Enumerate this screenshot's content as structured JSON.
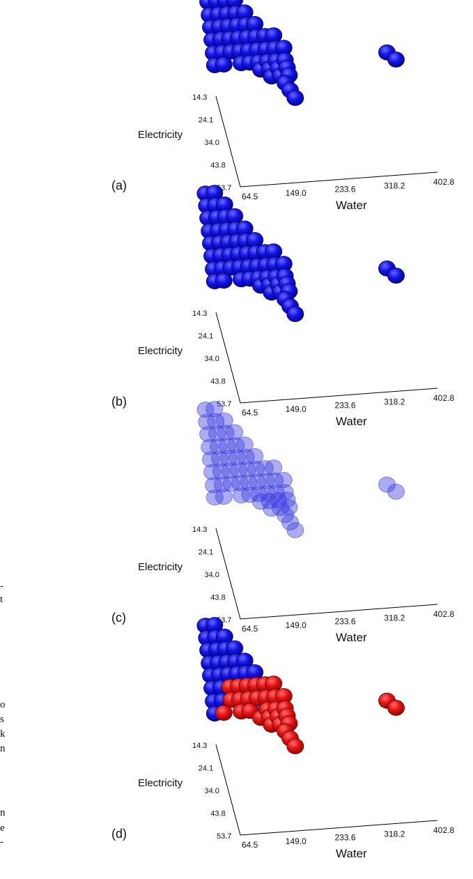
{
  "fragment_text": [
    "-",
    "t",
    "o",
    "s",
    "k",
    "n",
    "n",
    "e",
    "-"
  ],
  "colors": {
    "blue": "#1414e6",
    "blue_dark": "#00008c",
    "red": "#e61414",
    "red_dark": "#8c0000",
    "axis": "#000000"
  },
  "chart_data": [
    {
      "type": "scatter",
      "panel_label": "(a)",
      "xlabel": "Water",
      "ylabel": "Electricity",
      "x_ticks": [
        "64.5",
        "149.0",
        "233.6",
        "318.2",
        "402.8"
      ],
      "y_ticks": [
        "14.3",
        "24.1",
        "34.0",
        "43.8",
        "53.7"
      ],
      "xlim": [
        64.5,
        402.8
      ],
      "ylim": [
        14.3,
        53.7
      ],
      "marker_style": "solid",
      "series": [
        {
          "color": "blue",
          "points": [
            [
              64.5,
              14.3
            ],
            [
              64.5,
              17.5
            ],
            [
              64.5,
              20.7
            ],
            [
              64.5,
              24.1
            ],
            [
              64.5,
              27.3
            ],
            [
              64.5,
              30.6
            ],
            [
              64.5,
              34.0
            ],
            [
              64.5,
              37.2
            ],
            [
              80,
              14.3
            ],
            [
              80,
              17.5
            ],
            [
              80,
              20.7
            ],
            [
              80,
              24.1
            ],
            [
              80,
              27.3
            ],
            [
              80,
              30.6
            ],
            [
              80,
              34.0
            ],
            [
              80,
              37.2
            ],
            [
              95,
              17.5
            ],
            [
              95,
              20.7
            ],
            [
              95,
              24.1
            ],
            [
              95,
              27.3
            ],
            [
              95,
              30.6
            ],
            [
              95,
              34.0
            ],
            [
              110,
              20.7
            ],
            [
              110,
              24.1
            ],
            [
              110,
              27.3
            ],
            [
              110,
              30.6
            ],
            [
              110,
              34.0
            ],
            [
              110,
              37.2
            ],
            [
              125,
              24.1
            ],
            [
              125,
              27.3
            ],
            [
              125,
              30.6
            ],
            [
              125,
              34.0
            ],
            [
              125,
              37.2
            ],
            [
              140,
              27.3
            ],
            [
              140,
              30.6
            ],
            [
              140,
              34.0
            ],
            [
              140,
              37.2
            ],
            [
              140,
              40.5
            ],
            [
              155,
              30.6
            ],
            [
              155,
              34.0
            ],
            [
              155,
              37.2
            ],
            [
              155,
              40.5
            ],
            [
              155,
              43.8
            ],
            [
              170,
              30.6
            ],
            [
              170,
              34.0
            ],
            [
              170,
              37.2
            ],
            [
              170,
              40.5
            ],
            [
              170,
              43.8
            ],
            [
              185,
              34.0
            ],
            [
              185,
              37.2
            ],
            [
              185,
              40.5
            ],
            [
              185,
              43.8
            ],
            [
              175,
              47.0
            ],
            [
              180,
              50.2
            ],
            [
              185,
              53.7
            ],
            [
              360,
              37.2
            ],
            [
              372,
              40.5
            ]
          ]
        }
      ]
    },
    {
      "type": "scatter",
      "panel_label": "(b)",
      "xlabel": "Water",
      "ylabel": "Electricity",
      "x_ticks": [
        "64.5",
        "149.0",
        "233.6",
        "318.2",
        "402.8"
      ],
      "y_ticks": [
        "14.3",
        "24.1",
        "34.0",
        "43.8",
        "53.7"
      ],
      "xlim": [
        64.5,
        402.8
      ],
      "ylim": [
        14.3,
        53.7
      ],
      "marker_style": "solid",
      "series": [
        {
          "color": "blue",
          "points": [
            [
              64.5,
              14.3
            ],
            [
              64.5,
              17.5
            ],
            [
              64.5,
              20.7
            ],
            [
              64.5,
              24.1
            ],
            [
              64.5,
              27.3
            ],
            [
              64.5,
              30.6
            ],
            [
              64.5,
              34.0
            ],
            [
              64.5,
              37.2
            ],
            [
              80,
              14.3
            ],
            [
              80,
              17.5
            ],
            [
              80,
              20.7
            ],
            [
              80,
              24.1
            ],
            [
              80,
              27.3
            ],
            [
              80,
              30.6
            ],
            [
              80,
              34.0
            ],
            [
              80,
              37.2
            ],
            [
              95,
              17.5
            ],
            [
              95,
              20.7
            ],
            [
              95,
              24.1
            ],
            [
              95,
              27.3
            ],
            [
              95,
              30.6
            ],
            [
              95,
              34.0
            ],
            [
              110,
              20.7
            ],
            [
              110,
              24.1
            ],
            [
              110,
              27.3
            ],
            [
              110,
              30.6
            ],
            [
              110,
              34.0
            ],
            [
              110,
              37.2
            ],
            [
              125,
              24.1
            ],
            [
              125,
              27.3
            ],
            [
              125,
              30.6
            ],
            [
              125,
              34.0
            ],
            [
              125,
              37.2
            ],
            [
              140,
              27.3
            ],
            [
              140,
              30.6
            ],
            [
              140,
              34.0
            ],
            [
              140,
              37.2
            ],
            [
              140,
              40.5
            ],
            [
              155,
              30.6
            ],
            [
              155,
              34.0
            ],
            [
              155,
              37.2
            ],
            [
              155,
              40.5
            ],
            [
              155,
              43.8
            ],
            [
              170,
              30.6
            ],
            [
              170,
              34.0
            ],
            [
              170,
              37.2
            ],
            [
              170,
              40.5
            ],
            [
              170,
              43.8
            ],
            [
              185,
              34.0
            ],
            [
              185,
              37.2
            ],
            [
              185,
              40.5
            ],
            [
              185,
              43.8
            ],
            [
              175,
              47.0
            ],
            [
              180,
              50.2
            ],
            [
              185,
              53.7
            ],
            [
              360,
              37.2
            ],
            [
              372,
              40.5
            ]
          ]
        }
      ]
    },
    {
      "type": "scatter",
      "panel_label": "(c)",
      "xlabel": "Water",
      "ylabel": "Electricity",
      "x_ticks": [
        "64.5",
        "149.0",
        "233.6",
        "318.2",
        "402.8"
      ],
      "y_ticks": [
        "14.3",
        "24.1",
        "34.0",
        "43.8",
        "53.7"
      ],
      "xlim": [
        64.5,
        402.8
      ],
      "ylim": [
        14.3,
        53.7
      ],
      "marker_style": "translucent",
      "series": [
        {
          "color": "blue",
          "points": [
            [
              64.5,
              14.3
            ],
            [
              64.5,
              17.5
            ],
            [
              64.5,
              20.7
            ],
            [
              64.5,
              24.1
            ],
            [
              64.5,
              27.3
            ],
            [
              64.5,
              30.6
            ],
            [
              64.5,
              34.0
            ],
            [
              64.5,
              37.2
            ],
            [
              80,
              14.3
            ],
            [
              80,
              17.5
            ],
            [
              80,
              20.7
            ],
            [
              80,
              24.1
            ],
            [
              80,
              27.3
            ],
            [
              80,
              30.6
            ],
            [
              80,
              34.0
            ],
            [
              80,
              37.2
            ],
            [
              95,
              17.5
            ],
            [
              95,
              20.7
            ],
            [
              95,
              24.1
            ],
            [
              95,
              27.3
            ],
            [
              95,
              30.6
            ],
            [
              95,
              34.0
            ],
            [
              110,
              20.7
            ],
            [
              110,
              24.1
            ],
            [
              110,
              27.3
            ],
            [
              110,
              30.6
            ],
            [
              110,
              34.0
            ],
            [
              110,
              37.2
            ],
            [
              125,
              24.1
            ],
            [
              125,
              27.3
            ],
            [
              125,
              30.6
            ],
            [
              125,
              34.0
            ],
            [
              125,
              37.2
            ],
            [
              140,
              27.3
            ],
            [
              140,
              30.6
            ],
            [
              140,
              34.0
            ],
            [
              140,
              37.2
            ],
            [
              140,
              40.5
            ],
            [
              155,
              30.6
            ],
            [
              155,
              34.0
            ],
            [
              155,
              37.2
            ],
            [
              155,
              40.5
            ],
            [
              155,
              43.8
            ],
            [
              170,
              30.6
            ],
            [
              170,
              34.0
            ],
            [
              170,
              37.2
            ],
            [
              170,
              40.5
            ],
            [
              170,
              43.8
            ],
            [
              185,
              34.0
            ],
            [
              185,
              37.2
            ],
            [
              185,
              40.5
            ],
            [
              185,
              43.8
            ],
            [
              175,
              47.0
            ],
            [
              180,
              50.2
            ],
            [
              185,
              53.7
            ],
            [
              360,
              37.2
            ],
            [
              372,
              40.5
            ]
          ]
        }
      ]
    },
    {
      "type": "scatter",
      "panel_label": "(d)",
      "xlabel": "Water",
      "ylabel": "Electricity",
      "x_ticks": [
        "64.5",
        "149.0",
        "233.6",
        "318.2",
        "402.8"
      ],
      "y_ticks": [
        "14.3",
        "24.1",
        "34.0",
        "43.8",
        "53.7"
      ],
      "xlim": [
        64.5,
        402.8
      ],
      "ylim": [
        14.3,
        53.7
      ],
      "marker_style": "solid",
      "series": [
        {
          "color": "blue",
          "points": [
            [
              64.5,
              14.3
            ],
            [
              64.5,
              17.5
            ],
            [
              64.5,
              20.7
            ],
            [
              64.5,
              24.1
            ],
            [
              64.5,
              27.3
            ],
            [
              64.5,
              30.6
            ],
            [
              64.5,
              34.0
            ],
            [
              64.5,
              37.2
            ],
            [
              80,
              14.3
            ],
            [
              80,
              17.5
            ],
            [
              80,
              20.7
            ],
            [
              80,
              24.1
            ],
            [
              80,
              27.3
            ],
            [
              80,
              30.6
            ],
            [
              80,
              34.0
            ],
            [
              95,
              17.5
            ],
            [
              95,
              20.7
            ],
            [
              95,
              24.1
            ],
            [
              95,
              27.3
            ],
            [
              110,
              20.7
            ],
            [
              110,
              24.1
            ],
            [
              110,
              27.3
            ],
            [
              125,
              24.1
            ],
            [
              125,
              27.3
            ],
            [
              140,
              27.3
            ],
            [
              140,
              37.2
            ]
          ]
        },
        {
          "color": "red",
          "points": [
            [
              80,
              37.2
            ],
            [
              95,
              30.6
            ],
            [
              95,
              34.0
            ],
            [
              110,
              30.6
            ],
            [
              110,
              34.0
            ],
            [
              110,
              37.2
            ],
            [
              125,
              30.6
            ],
            [
              125,
              34.0
            ],
            [
              125,
              37.2
            ],
            [
              140,
              30.6
            ],
            [
              140,
              34.0
            ],
            [
              140,
              40.5
            ],
            [
              155,
              30.6
            ],
            [
              155,
              34.0
            ],
            [
              155,
              37.2
            ],
            [
              155,
              40.5
            ],
            [
              155,
              43.8
            ],
            [
              170,
              30.6
            ],
            [
              170,
              34.0
            ],
            [
              170,
              37.2
            ],
            [
              170,
              40.5
            ],
            [
              170,
              43.8
            ],
            [
              185,
              34.0
            ],
            [
              185,
              37.2
            ],
            [
              185,
              40.5
            ],
            [
              185,
              43.8
            ],
            [
              175,
              47.0
            ],
            [
              180,
              50.2
            ],
            [
              185,
              53.7
            ],
            [
              360,
              37.2
            ],
            [
              372,
              40.5
            ]
          ]
        }
      ]
    }
  ]
}
